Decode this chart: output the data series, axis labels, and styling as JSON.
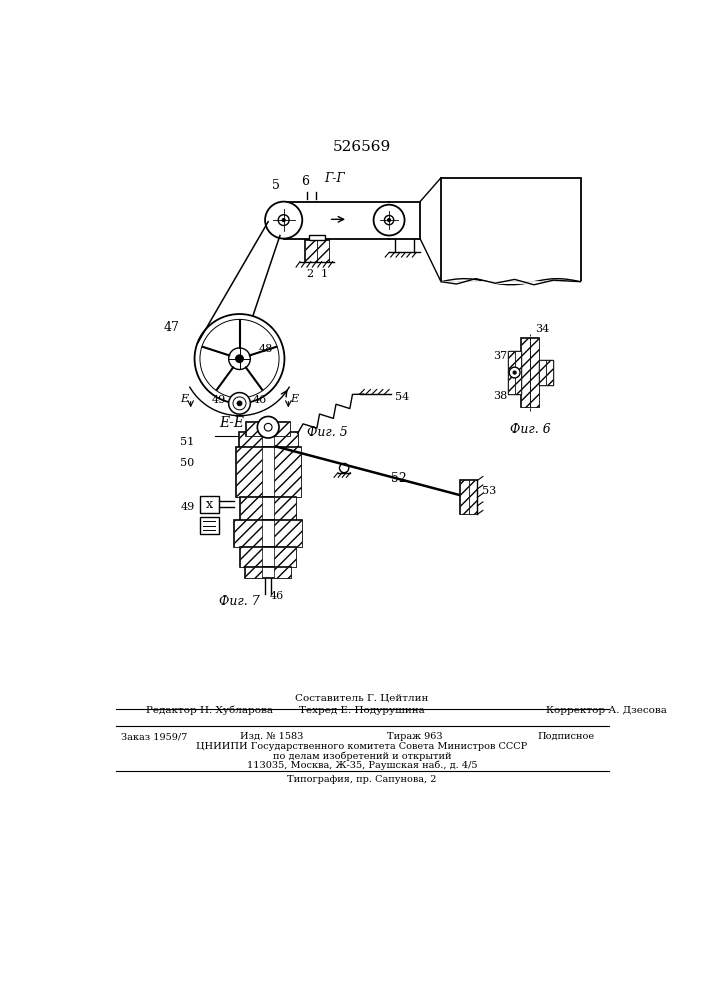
{
  "patent_number": "526569",
  "bg_color": "#ffffff",
  "fig5_label": "Фиг. 5",
  "fig6_label": "Фиг. 6",
  "fig7_label": "Фиг. 7",
  "section_gg": "Г-Г",
  "section_ee": "Е-Е",
  "footer_composer": "Составитель Г. Цейтлин",
  "footer_editor": "Редактор Н. Хубларова",
  "footer_tech": "Техред Е. Подурушина",
  "footer_corrector": "Корректор А. Дзесова",
  "footer_order": "Заказ 1959/7",
  "footer_issue": "Изд. № 1583",
  "footer_circulation": "Тираж 963",
  "footer_subscription": "Подписное",
  "footer_cniip": "ЦНИИПИ Государственного комитета Совета Министров СССР",
  "footer_affairs": "по делам изобретений и открытий",
  "footer_address": "113035, Москва, Ж-35, Раушская наб., д. 4/5",
  "footer_printing": "Типография, пр. Сапунова, 2"
}
